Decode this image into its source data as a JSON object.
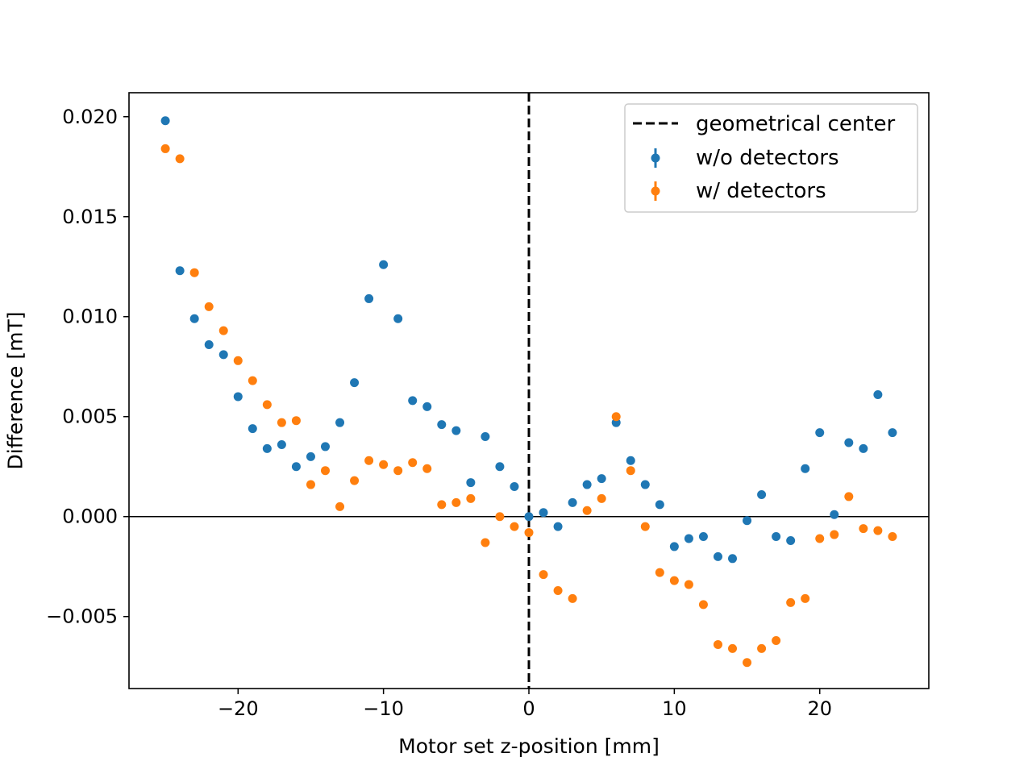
{
  "chart_data": {
    "type": "scatter",
    "title": "",
    "xlabel": "Motor set z-position [mm]",
    "ylabel": "Difference [mT]",
    "xlim": [
      -27.5,
      27.5
    ],
    "ylim": [
      -0.0086,
      0.0212
    ],
    "xticks": [
      -20,
      -10,
      0,
      10,
      20
    ],
    "xtick_labels": [
      "−20",
      "−10",
      "0",
      "10",
      "20"
    ],
    "yticks": [
      -0.005,
      0.0,
      0.005,
      0.01,
      0.015,
      0.02
    ],
    "ytick_labels": [
      "−0.005",
      "0.000",
      "0.005",
      "0.010",
      "0.015",
      "0.020"
    ],
    "grid": false,
    "legend_position": "top-right",
    "hline": {
      "y": 0.0,
      "color": "#000000"
    },
    "vline": {
      "x": 0,
      "name": "geometrical center",
      "color": "#000000",
      "style": "dashed"
    },
    "x": [
      -25,
      -24,
      -23,
      -22,
      -21,
      -20,
      -19,
      -18,
      -17,
      -16,
      -15,
      -14,
      -13,
      -12,
      -11,
      -10,
      -9,
      -8,
      -7,
      -6,
      -5,
      -4,
      -3,
      -2,
      -1,
      0,
      1,
      2,
      3,
      4,
      5,
      6,
      7,
      8,
      9,
      10,
      11,
      12,
      13,
      14,
      15,
      16,
      17,
      18,
      19,
      20,
      21,
      22,
      23,
      24,
      25
    ],
    "series": [
      {
        "name": "w/o detectors",
        "color": "#1f77b4",
        "values": [
          0.0198,
          0.0123,
          0.0099,
          0.0086,
          0.0081,
          0.006,
          0.0044,
          0.0034,
          0.0036,
          0.0025,
          0.003,
          0.0035,
          0.0047,
          0.0067,
          0.0109,
          0.0126,
          0.0099,
          0.0058,
          0.0055,
          0.0046,
          0.0043,
          0.0017,
          0.004,
          0.0025,
          0.0015,
          0.0,
          0.0002,
          -0.0005,
          0.0007,
          0.0016,
          0.0019,
          0.0047,
          0.0028,
          0.0016,
          0.0006,
          -0.0015,
          -0.0011,
          -0.001,
          -0.002,
          -0.0021,
          -0.0002,
          0.0011,
          -0.001,
          -0.0012,
          0.0024,
          0.0042,
          0.0001,
          0.0037,
          0.0034,
          0.0061,
          0.0042
        ]
      },
      {
        "name": "w/ detectors",
        "color": "#ff7f0e",
        "values": [
          0.0184,
          0.0179,
          0.0122,
          0.0105,
          0.0093,
          0.0078,
          0.0068,
          0.0056,
          0.0047,
          0.0048,
          0.0016,
          0.0023,
          0.0005,
          0.0018,
          0.0028,
          0.0026,
          0.0023,
          0.0027,
          0.0024,
          0.0006,
          0.0007,
          0.0009,
          -0.0013,
          0.0,
          -0.0005,
          -0.0008,
          -0.0029,
          -0.0037,
          -0.0041,
          0.0003,
          0.0009,
          0.005,
          0.0023,
          -0.0005,
          -0.0028,
          -0.0032,
          -0.0034,
          -0.0044,
          -0.0064,
          -0.0066,
          -0.0073,
          -0.0066,
          -0.0062,
          -0.0043,
          -0.0041,
          -0.0011,
          -0.0009,
          0.001,
          -0.0006,
          -0.0007,
          -0.001
        ]
      }
    ]
  }
}
